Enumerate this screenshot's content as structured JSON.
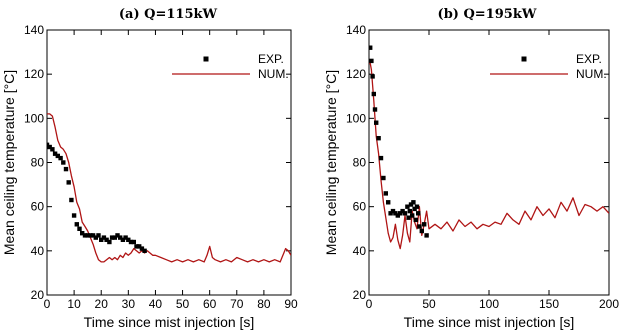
{
  "colors": {
    "exp": "#000000",
    "num": "#b01515",
    "axis": "#000000"
  },
  "chart_data": [
    {
      "type": "scatter",
      "title": "(a) Q=115kW",
      "xlabel": "Time since mist injection [s]",
      "ylabel": "Mean ceiling temperature [°C]",
      "xlim": [
        0,
        90
      ],
      "ylim": [
        20,
        140
      ],
      "xticks": [
        0,
        10,
        20,
        30,
        40,
        50,
        60,
        70,
        80,
        90
      ],
      "yticks": [
        20,
        40,
        60,
        80,
        100,
        120,
        140
      ],
      "grid": false,
      "legend": {
        "position": "top-right",
        "entries": [
          "EXP.",
          "NUM."
        ]
      },
      "series": [
        {
          "name": "EXP.",
          "type": "scatter",
          "x": [
            0,
            1,
            2,
            3,
            4,
            5,
            6,
            7,
            8,
            9,
            10,
            11,
            12,
            13,
            14,
            15,
            16,
            17,
            18,
            19,
            20,
            21,
            22,
            23,
            24,
            25,
            26,
            27,
            28,
            29,
            30,
            31,
            32,
            33,
            34,
            35,
            36
          ],
          "y": [
            88,
            87,
            86,
            84,
            83,
            82,
            80,
            77,
            71,
            63,
            56,
            52,
            50,
            48,
            47,
            47,
            47,
            47,
            46,
            47,
            45,
            46,
            45,
            44,
            46,
            46,
            47,
            46,
            45,
            46,
            45,
            44,
            44,
            42,
            42,
            41,
            40
          ]
        },
        {
          "name": "NUM.",
          "type": "line",
          "x": [
            0,
            1,
            2,
            3,
            4,
            5,
            6,
            7,
            8,
            9,
            10,
            11,
            12,
            13,
            14,
            15,
            16,
            17,
            18,
            19,
            20,
            21,
            22,
            23,
            24,
            25,
            26,
            27,
            28,
            29,
            30,
            31,
            32,
            33,
            34,
            35,
            36,
            37,
            38,
            39,
            40,
            42,
            44,
            46,
            48,
            50,
            52,
            54,
            56,
            58,
            59,
            60,
            61,
            62,
            64,
            66,
            68,
            70,
            72,
            74,
            76,
            78,
            80,
            82,
            84,
            86,
            87,
            88,
            89,
            90
          ],
          "y": [
            102,
            102,
            101,
            96,
            90,
            87,
            86,
            84,
            80,
            74,
            69,
            62,
            59,
            53,
            51,
            49,
            46,
            43,
            39,
            36,
            35,
            35,
            36,
            37,
            36,
            37,
            36,
            38,
            37,
            39,
            38,
            39,
            41,
            40,
            39,
            40,
            39,
            40,
            39,
            38,
            38,
            37,
            36,
            35,
            36,
            35,
            36,
            35,
            36,
            35,
            38,
            42,
            37,
            36,
            35,
            36,
            35,
            37,
            36,
            35,
            36,
            35,
            36,
            35,
            36,
            35,
            38,
            41,
            40,
            38
          ]
        }
      ]
    },
    {
      "type": "scatter",
      "title": "(b) Q=195kW",
      "xlabel": "Time since mist injection [s]",
      "ylabel": "Mean ceiling temperature [°C]",
      "xlim": [
        0,
        200
      ],
      "ylim": [
        20,
        140
      ],
      "xticks": [
        0,
        50,
        100,
        150,
        200
      ],
      "yticks": [
        20,
        40,
        60,
        80,
        100,
        120,
        140
      ],
      "grid": false,
      "legend": {
        "position": "top-right",
        "entries": [
          "EXP.",
          "NUM."
        ]
      },
      "series": [
        {
          "name": "EXP.",
          "type": "scatter",
          "x": [
            1,
            2,
            3,
            4,
            5,
            6,
            8,
            10,
            12,
            14,
            16,
            18,
            20,
            22,
            24,
            26,
            28,
            30,
            32,
            33,
            34,
            35,
            36,
            37,
            38,
            39,
            40,
            41,
            42,
            44,
            46,
            48
          ],
          "y": [
            132,
            126,
            119,
            111,
            104,
            98,
            91,
            82,
            73,
            66,
            62,
            57,
            58,
            57,
            56,
            57,
            58,
            57,
            60,
            55,
            58,
            61,
            56,
            62,
            59,
            54,
            60,
            57,
            51,
            49,
            52,
            47
          ]
        },
        {
          "name": "NUM.",
          "type": "line",
          "x": [
            0,
            1,
            2,
            3,
            4,
            5,
            6,
            8,
            10,
            12,
            14,
            16,
            18,
            20,
            22,
            24,
            26,
            28,
            30,
            32,
            34,
            36,
            38,
            40,
            42,
            44,
            46,
            48,
            50,
            55,
            60,
            65,
            70,
            75,
            80,
            85,
            90,
            95,
            100,
            105,
            110,
            115,
            120,
            125,
            130,
            135,
            140,
            145,
            150,
            155,
            160,
            165,
            170,
            175,
            180,
            185,
            190,
            195,
            200
          ],
          "y": [
            125,
            125,
            122,
            115,
            108,
            100,
            92,
            84,
            72,
            62,
            55,
            48,
            44,
            46,
            52,
            45,
            41,
            47,
            56,
            48,
            44,
            58,
            53,
            50,
            60,
            47,
            52,
            58,
            50,
            52,
            50,
            53,
            49,
            54,
            51,
            53,
            50,
            52,
            51,
            53,
            52,
            57,
            54,
            52,
            58,
            54,
            60,
            56,
            59,
            55,
            62,
            58,
            64,
            56,
            61,
            60,
            58,
            60,
            57
          ]
        }
      ]
    }
  ]
}
